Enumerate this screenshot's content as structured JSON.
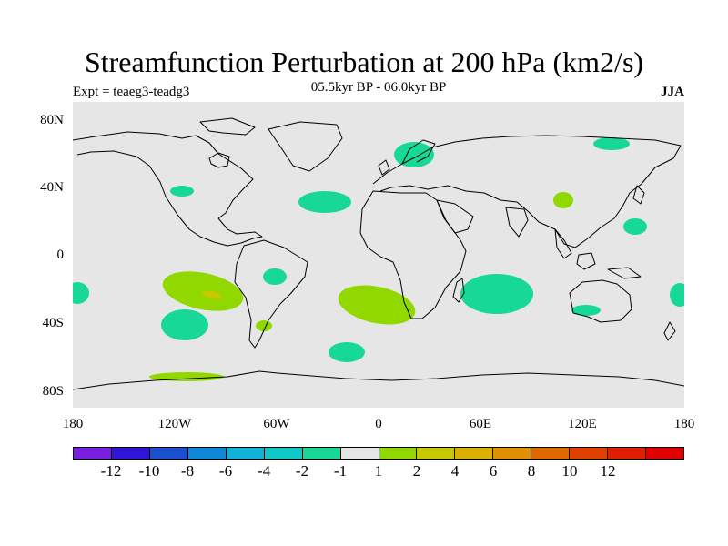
{
  "title": "Streamfunction Perturbation at 200 hPa (km2/s)",
  "left_string": "Expt = teaeg3-teadg3",
  "center_string": "05.5kyr BP - 06.0kyr BP",
  "right_string": "JJA",
  "lat_labels": [
    "80N",
    "40N",
    "0",
    "40S",
    "80S"
  ],
  "lon_labels": [
    "180",
    "120W",
    "60W",
    "0",
    "60E",
    "120E",
    "180"
  ],
  "colorbar": {
    "colors": [
      "#7a1ee0",
      "#3216d8",
      "#1850d0",
      "#1088d8",
      "#10b0d8",
      "#10c8c8",
      "#18d898",
      "#e6e6e6",
      "#90d800",
      "#c8c800",
      "#dcb000",
      "#e09000",
      "#e06800",
      "#e04000",
      "#e02000",
      "#e00000"
    ],
    "labels": [
      "-12",
      "-10",
      "-8",
      "-6",
      "-4",
      "-2",
      "-1",
      "1",
      "2",
      "4",
      "6",
      "8",
      "10",
      "12"
    ]
  },
  "map_colors": {
    "background": "#e6e6e6",
    "coast": "#000000",
    "neg_light": "#18d898",
    "pos_light": "#90d800",
    "pos_mid": "#c8c800"
  }
}
